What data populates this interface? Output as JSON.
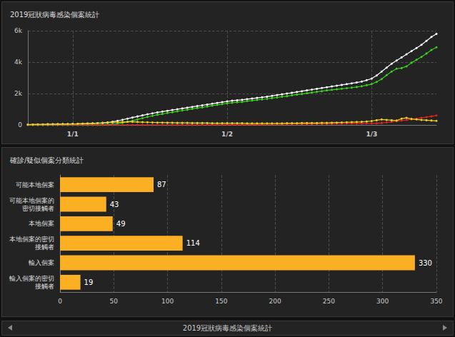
{
  "chart_data": [
    {
      "type": "line",
      "title": "2019冠狀病毒感染個案統計",
      "categories": [
        null,
        null,
        null,
        null,
        null,
        null,
        null,
        null,
        null,
        "1/1",
        null,
        null,
        null,
        null,
        null,
        null,
        null,
        null,
        null,
        null,
        null,
        null,
        null,
        null,
        null,
        null,
        null,
        null,
        null,
        null,
        null,
        null,
        null,
        null,
        null,
        null,
        null,
        null,
        null,
        null,
        "1/2",
        null,
        null,
        null,
        null,
        null,
        null,
        null,
        null,
        null,
        null,
        null,
        null,
        null,
        null,
        null,
        null,
        null,
        null,
        null,
        null,
        null,
        null,
        null,
        null,
        null,
        null,
        null,
        null,
        "1/3",
        null,
        null,
        null,
        null,
        null,
        null,
        null,
        null,
        null,
        null,
        null,
        null,
        null
      ],
      "series": [
        {
          "color": "#ffffff",
          "values": [
            20,
            25,
            30,
            35,
            40,
            45,
            50,
            55,
            60,
            65,
            70,
            80,
            90,
            100,
            115,
            130,
            160,
            200,
            260,
            330,
            400,
            470,
            540,
            610,
            680,
            740,
            800,
            850,
            900,
            950,
            1000,
            1050,
            1100,
            1150,
            1200,
            1250,
            1300,
            1350,
            1400,
            1450,
            1500,
            1540,
            1570,
            1600,
            1640,
            1680,
            1720,
            1760,
            1800,
            1850,
            1900,
            1950,
            2000,
            2050,
            2100,
            2150,
            2200,
            2250,
            2300,
            2350,
            2400,
            2450,
            2500,
            2550,
            2600,
            2650,
            2700,
            2760,
            2850,
            2950,
            3150,
            3400,
            3650,
            3900,
            4100,
            4300,
            4500,
            4700,
            4900,
            5100,
            5350,
            5600,
            5800
          ]
        },
        {
          "color": "#3ccf1e",
          "values": [
            0,
            0,
            0,
            0,
            0,
            0,
            0,
            0,
            0,
            0,
            0,
            0,
            0,
            0,
            5,
            10,
            20,
            40,
            80,
            140,
            200,
            270,
            350,
            430,
            510,
            580,
            650,
            700,
            760,
            810,
            870,
            920,
            970,
            1025,
            1075,
            1120,
            1170,
            1230,
            1280,
            1330,
            1380,
            1415,
            1445,
            1470,
            1520,
            1555,
            1595,
            1625,
            1660,
            1710,
            1750,
            1800,
            1835,
            1885,
            1935,
            1970,
            2020,
            2065,
            2110,
            2150,
            2200,
            2235,
            2270,
            2305,
            2340,
            2375,
            2415,
            2465,
            2530,
            2600,
            2740,
            2920,
            3170,
            3400,
            3580,
            3620,
            3730,
            3960,
            4150,
            4330,
            4550,
            4770,
            4940
          ]
        },
        {
          "color": "#e02424",
          "values": [
            0,
            0,
            0,
            0,
            0,
            0,
            0,
            0,
            0,
            0,
            0,
            0,
            0,
            0,
            0,
            0,
            0,
            0,
            0,
            0,
            0,
            0,
            0,
            0,
            0,
            0,
            0,
            0,
            0,
            0,
            0,
            1,
            2,
            5,
            5,
            8,
            8,
            10,
            10,
            12,
            13,
            15,
            15,
            18,
            21,
            24,
            26,
            36,
            38,
            42,
            49,
            50,
            53,
            56,
            57,
            60,
            62,
            65,
            68,
            69,
            70,
            74,
            81,
            85,
            91,
            93,
            94,
            95,
            100,
            104,
            110,
            130,
            160,
            200,
            240,
            280,
            320,
            360,
            400,
            450,
            500,
            550,
            600
          ]
        },
        {
          "color": "#e8d21c",
          "values": [
            20,
            25,
            30,
            35,
            40,
            45,
            50,
            55,
            60,
            65,
            70,
            80,
            90,
            100,
            110,
            120,
            140,
            160,
            180,
            190,
            200,
            200,
            190,
            180,
            170,
            160,
            150,
            150,
            140,
            140,
            130,
            130,
            130,
            120,
            120,
            120,
            120,
            110,
            110,
            110,
            110,
            110,
            110,
            110,
            100,
            100,
            100,
            100,
            100,
            100,
            100,
            100,
            110,
            110,
            110,
            120,
            120,
            120,
            120,
            130,
            130,
            140,
            150,
            160,
            170,
            180,
            190,
            200,
            220,
            250,
            300,
            350,
            320,
            300,
            280,
            400,
            450,
            380,
            350,
            320,
            300,
            280,
            260
          ]
        }
      ],
      "ylim": [
        0,
        6000
      ],
      "yticks": [
        0,
        {
          "value": 2000,
          "label": "2k"
        },
        {
          "value": 4000,
          "label": "4k"
        },
        {
          "value": 6000,
          "label": "6k"
        }
      ],
      "grid": true,
      "marker": "circle"
    },
    {
      "type": "bar",
      "title": "確診/疑似個案分類統計",
      "orientation": "horizontal",
      "categories": [
        "可能本地個案",
        "可能本地個案的密切接觸者",
        "本地個案",
        "本地個案的密切接觸者",
        "輸入個案",
        "輸入個案的密切接觸者"
      ],
      "values": [
        87,
        43,
        49,
        114,
        330,
        19
      ],
      "color": "#fbb024",
      "xlim": [
        0,
        350
      ],
      "xticks": [
        0,
        50,
        100,
        150,
        200,
        250,
        300,
        350
      ],
      "grid": true,
      "data_labels": true
    }
  ],
  "footer": {
    "title": "2019冠狀病毒感染個案統計"
  }
}
